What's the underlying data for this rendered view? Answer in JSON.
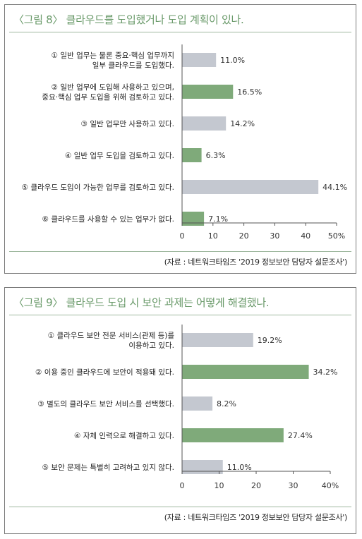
{
  "charts": [
    {
      "title": "〈그림 8〉 클라우드를 도입했거나 도입 계획이 있나.",
      "source": "(자료 : 네트워크타임즈 '2019 정보보안 담당자 설문조사')"
    },
    {
      "title": "〈그림 9〉 클라우드 도입 시 보안 과제는 어떻게 해결했나.",
      "source": "(자료 : 네트워크타임즈 '2019 정보보안 담당자 설문조사')"
    }
  ],
  "colors": {
    "gray": "#c4c8d0",
    "green": "#7faa7a",
    "title": "#6a9a6a",
    "axis": "#555555"
  },
  "chart_data": [
    {
      "type": "bar",
      "orientation": "horizontal",
      "title": "〈그림 8〉 클라우드를 도입했거나 도입 계획이 있나.",
      "categories": [
        [
          "① 일반 업무는 물론 중요·핵심 업무까지",
          "일부 클라우드를 도입했다."
        ],
        [
          "② 일반 업무에 도입해 사용하고 있으며,",
          "중요·핵심 업무 도입을 위해 검토하고 있다."
        ],
        [
          "③ 일반 업무만 사용하고 있다."
        ],
        [
          "④ 일반 업무 도입을 검토하고 있다."
        ],
        [
          "⑤ 클라우드 도입이 가능한 업무를 검토하고 있다."
        ],
        [
          "⑥ 클라우드를 사용할 수 있는 업무가 없다."
        ]
      ],
      "values": [
        11.0,
        16.5,
        14.2,
        6.3,
        44.1,
        7.1
      ],
      "value_labels": [
        "11.0%",
        "16.5%",
        "14.2%",
        "6.3%",
        "44.1%",
        "7.1%"
      ],
      "bar_colors": [
        "gray",
        "green",
        "gray",
        "green",
        "gray",
        "green"
      ],
      "xlim": [
        0,
        50
      ],
      "ticks": [
        "0",
        "10",
        "20",
        "30",
        "40",
        "50%"
      ],
      "grid": false
    },
    {
      "type": "bar",
      "orientation": "horizontal",
      "title": "〈그림 9〉 클라우드 도입 시 보안 과제는 어떻게 해결했나.",
      "categories": [
        [
          "① 클라우드 보안 전문 서비스(관제 등)를",
          "이용하고 있다."
        ],
        [
          "② 이용 중인 클라우드에 보안이 적용돼 있다."
        ],
        [
          "③ 별도의 클라우드 보안 서비스를 선택했다."
        ],
        [
          "④ 자체 인력으로 해결하고 있다."
        ],
        [
          "⑤ 보안 문제는 특별히 고려하고 있지 않다."
        ]
      ],
      "values": [
        19.2,
        34.2,
        8.2,
        27.4,
        11.0
      ],
      "value_labels": [
        "19.2%",
        "34.2%",
        "8.2%",
        "27.4%",
        "11.0%"
      ],
      "bar_colors": [
        "gray",
        "green",
        "gray",
        "green",
        "gray"
      ],
      "xlim": [
        0,
        40
      ],
      "ticks": [
        "0",
        "10",
        "20",
        "30",
        "40%"
      ],
      "grid": false
    }
  ]
}
